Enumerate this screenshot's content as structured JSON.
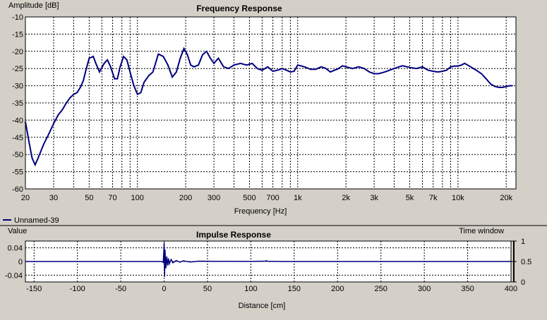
{
  "colors": {
    "background": "#d4d0c8",
    "plot_background": "#ffffff",
    "grid": "#000000",
    "series": "#000080"
  },
  "chart_data": [
    {
      "type": "line",
      "title": "Frequency Response",
      "ylabel": "Amplitude [dB]",
      "xlabel": "Frequency [Hz]",
      "x_scale": "log",
      "xlim": [
        20,
        23000
      ],
      "ylim": [
        -60,
        -10
      ],
      "grid": true,
      "y_ticks": [
        -10,
        -15,
        -20,
        -25,
        -30,
        -35,
        -40,
        -45,
        -50,
        -55,
        -60
      ],
      "x_tick_values": [
        20,
        30,
        50,
        70,
        100,
        200,
        300,
        500,
        700,
        1000,
        2000,
        3000,
        5000,
        7000,
        10000,
        20000
      ],
      "x_tick_labels": [
        "20",
        "30",
        "50",
        "70",
        "100",
        "200",
        "300",
        "500",
        "700",
        "1k",
        "2k",
        "3k",
        "5k",
        "7k",
        "10k",
        "20k"
      ],
      "legend": {
        "placement": "bottom-left",
        "entries": [
          "Unnamed-39"
        ]
      },
      "series": [
        {
          "name": "Unnamed-39",
          "x": [
            20,
            21,
            22,
            23,
            24,
            26,
            28,
            30,
            32,
            34,
            36,
            38,
            40,
            42,
            44,
            46,
            48,
            50,
            53,
            55,
            58,
            62,
            65,
            68,
            72,
            75,
            78,
            82,
            86,
            90,
            95,
            100,
            105,
            110,
            118,
            125,
            135,
            145,
            155,
            165,
            175,
            185,
            195,
            205,
            215,
            225,
            240,
            255,
            270,
            285,
            300,
            320,
            345,
            370,
            400,
            440,
            480,
            520,
            560,
            600,
            650,
            700,
            750,
            800,
            850,
            900,
            950,
            1000,
            1100,
            1200,
            1300,
            1400,
            1500,
            1600,
            1700,
            1800,
            1900,
            2000,
            2200,
            2400,
            2600,
            2800,
            3000,
            3200,
            3500,
            4000,
            4500,
            5000,
            5500,
            6000,
            6500,
            7000,
            7500,
            8000,
            8500,
            9000,
            9500,
            10000,
            10500,
            11000,
            12000,
            13000,
            14000,
            15000,
            16000,
            17000,
            18000,
            19000,
            20000,
            21000,
            22000
          ],
          "values": [
            -40.5,
            -46,
            -51,
            -53,
            -51,
            -47,
            -44,
            -41,
            -38.5,
            -37,
            -35,
            -33.5,
            -32.5,
            -32,
            -30.5,
            -28.5,
            -25,
            -22,
            -21.5,
            -23.5,
            -26,
            -23.5,
            -22.5,
            -24.5,
            -28,
            -28,
            -24.5,
            -21.5,
            -22.5,
            -26,
            -30,
            -32.5,
            -32,
            -29,
            -27,
            -26,
            -20.8,
            -21.5,
            -24,
            -27.5,
            -26,
            -22,
            -19.2,
            -21,
            -24,
            -24.5,
            -24,
            -21,
            -20,
            -22,
            -23.5,
            -22,
            -24.5,
            -25,
            -24,
            -23.5,
            -24,
            -23.5,
            -25,
            -25.5,
            -24.5,
            -25.8,
            -25.5,
            -25,
            -25.5,
            -26,
            -25.8,
            -24,
            -24.5,
            -25.2,
            -25.2,
            -24.5,
            -25,
            -26,
            -25.5,
            -25,
            -24.2,
            -24.5,
            -25,
            -24.5,
            -25,
            -26,
            -26.5,
            -26.5,
            -26,
            -25,
            -24.2,
            -24.7,
            -25,
            -24.5,
            -25.5,
            -25.8,
            -26,
            -25.8,
            -25.5,
            -24.5,
            -24.3,
            -24.3,
            -24,
            -23.5,
            -24.5,
            -25.5,
            -26.5,
            -28,
            -29.5,
            -30.2,
            -30.5,
            -30.5,
            -30.2,
            -30,
            -30
          ]
        }
      ]
    },
    {
      "type": "line",
      "title": "Impulse Response",
      "ylabel": "Value",
      "xlabel": "Distance [cm]",
      "right_label": "Time window",
      "xlim": [
        -160,
        400
      ],
      "ylim": [
        -0.06,
        0.06
      ],
      "grid": true,
      "x_ticks": [
        -150,
        -100,
        -50,
        0,
        50,
        100,
        150,
        200,
        250,
        300,
        350,
        400
      ],
      "y_ticks": [
        0.04,
        0,
        -0.04
      ],
      "y_tick_labels": [
        "0.04",
        "0",
        "-0.04"
      ],
      "right_ticks": [
        1,
        0.5,
        0
      ],
      "right_tick_labels": [
        "1",
        "0.5",
        "0"
      ],
      "series": [
        {
          "x": [
            -160,
            -3,
            -1,
            0,
            0.5,
            1,
            2,
            3,
            4,
            5,
            6,
            8,
            10,
            14,
            18,
            22,
            30,
            40,
            60,
            80,
            100,
            116,
            118,
            120,
            140,
            200,
            300,
            400
          ],
          "values": [
            0,
            0,
            -0.003,
            0.055,
            -0.045,
            0.035,
            -0.02,
            0.015,
            -0.012,
            0.009,
            -0.007,
            0.006,
            -0.004,
            0.003,
            -0.002,
            0.002,
            -0.0015,
            0.001,
            0.0005,
            0.0005,
            0.0003,
            0.001,
            0.002,
            0.0005,
            0,
            0,
            0,
            0
          ]
        }
      ]
    }
  ]
}
